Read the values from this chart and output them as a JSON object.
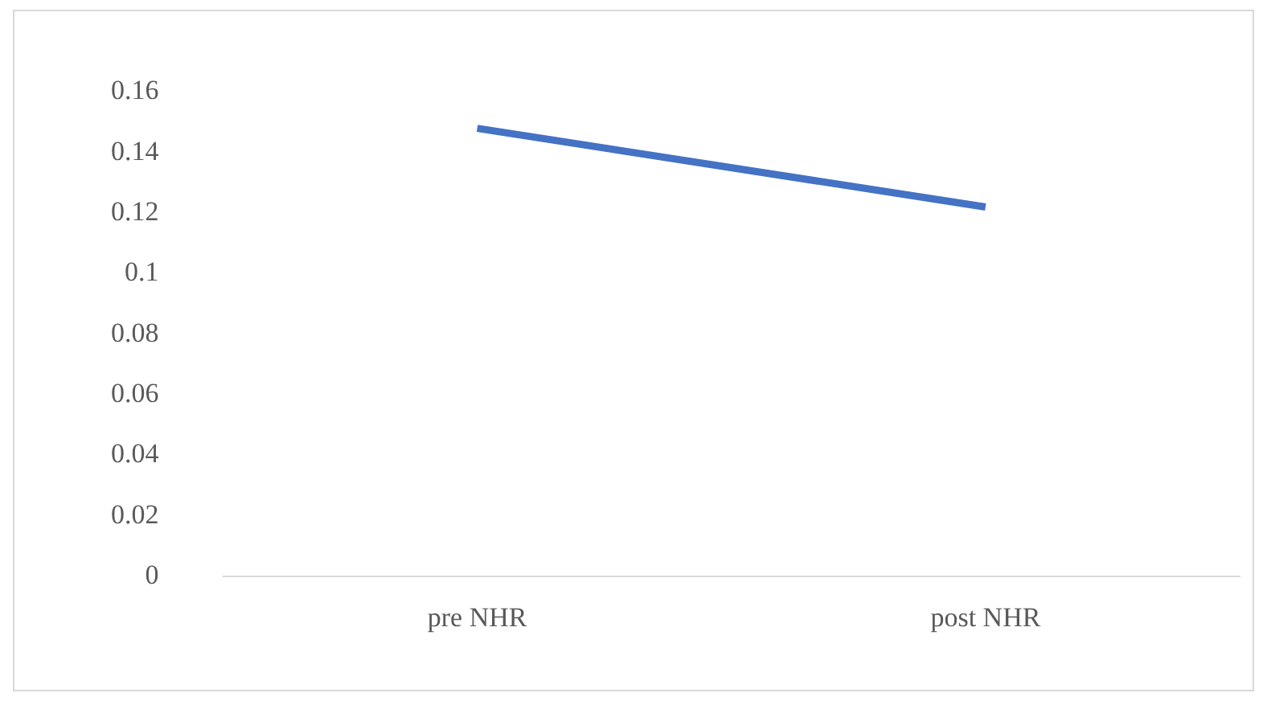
{
  "chart_data": {
    "type": "line",
    "categories": [
      "pre NHR",
      "post NHR"
    ],
    "series": [
      {
        "color": "#4472c4",
        "values": [
          0.148,
          0.122
        ]
      }
    ],
    "ylim": [
      0,
      0.16
    ],
    "yticks": [
      0,
      0.02,
      0.04,
      0.06,
      0.08,
      0.1,
      0.12,
      0.14,
      0.16
    ],
    "grid": false,
    "legend": false,
    "marker": "none",
    "line_style": "solid"
  }
}
